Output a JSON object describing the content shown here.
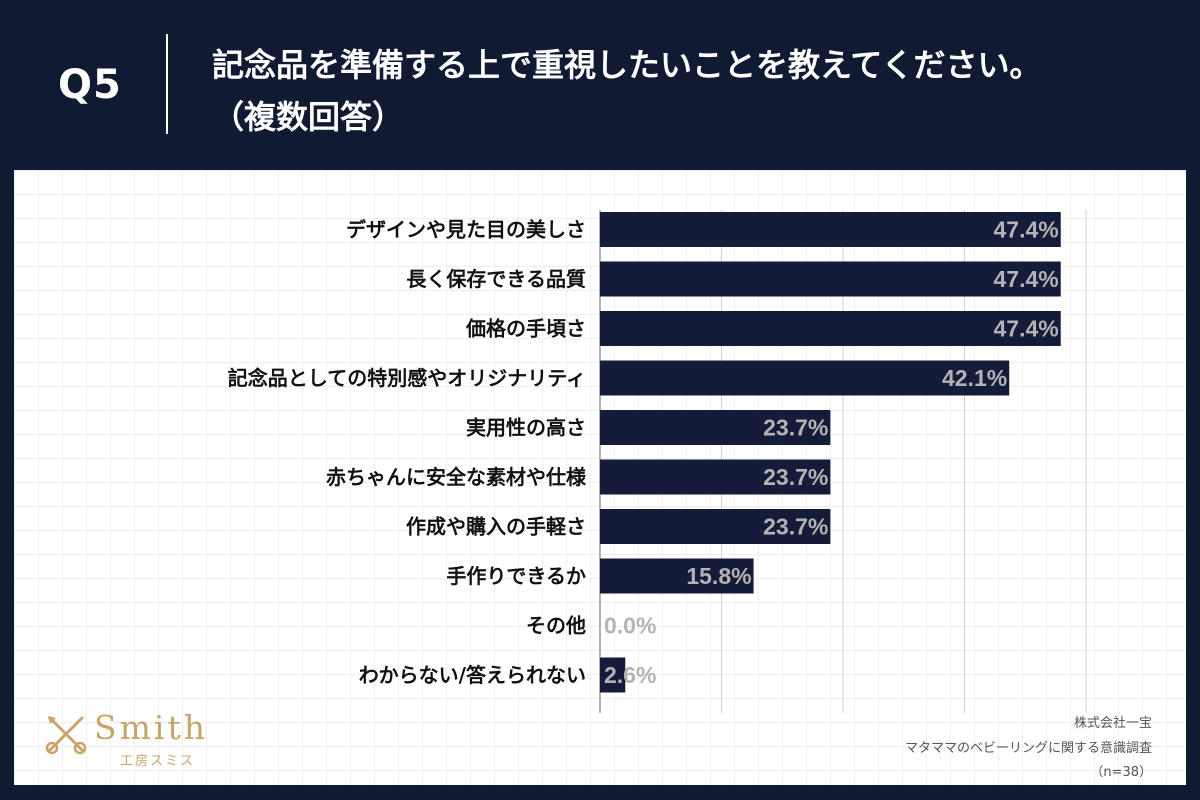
{
  "header": {
    "question": "Q5",
    "title_line1": "記念品を準備する上で重視したいことを教えてください。",
    "title_line2": "（複数回答）"
  },
  "colors": {
    "background": "#111a33",
    "bar": "#141c3a",
    "value_label": "#b3b3b3",
    "logo": "#c7a46a"
  },
  "chart_data": {
    "type": "bar",
    "orientation": "horizontal",
    "categories": [
      "デザインや見た目の美しさ",
      "長く保存できる品質",
      "価格の手頃さ",
      "記念品としての特別感やオリジナリティ",
      "実用性の高さ",
      "赤ちゃんに安全な素材や仕様",
      "作成や購入の手軽さ",
      "手作りできるか",
      "その他",
      "わからない/答えられない"
    ],
    "values": [
      47.4,
      47.4,
      47.4,
      42.1,
      23.7,
      23.7,
      23.7,
      15.8,
      0.0,
      2.6
    ],
    "value_labels": [
      "47.4%",
      "47.4%",
      "47.4%",
      "42.1%",
      "23.7%",
      "23.7%",
      "23.7%",
      "15.8%",
      "0.0%",
      "2.6%"
    ],
    "xlim": [
      0,
      50
    ],
    "grid_step": 12.5,
    "grid": true,
    "title": "記念品を準備する上で重視したいことを教えてください。（複数回答）"
  },
  "logo": {
    "word": "Smith",
    "sub": "工房スミス"
  },
  "source": {
    "company": "株式会社一宝",
    "survey": "マタママのベビーリングに関する意識調査",
    "n": "（n=38）"
  }
}
